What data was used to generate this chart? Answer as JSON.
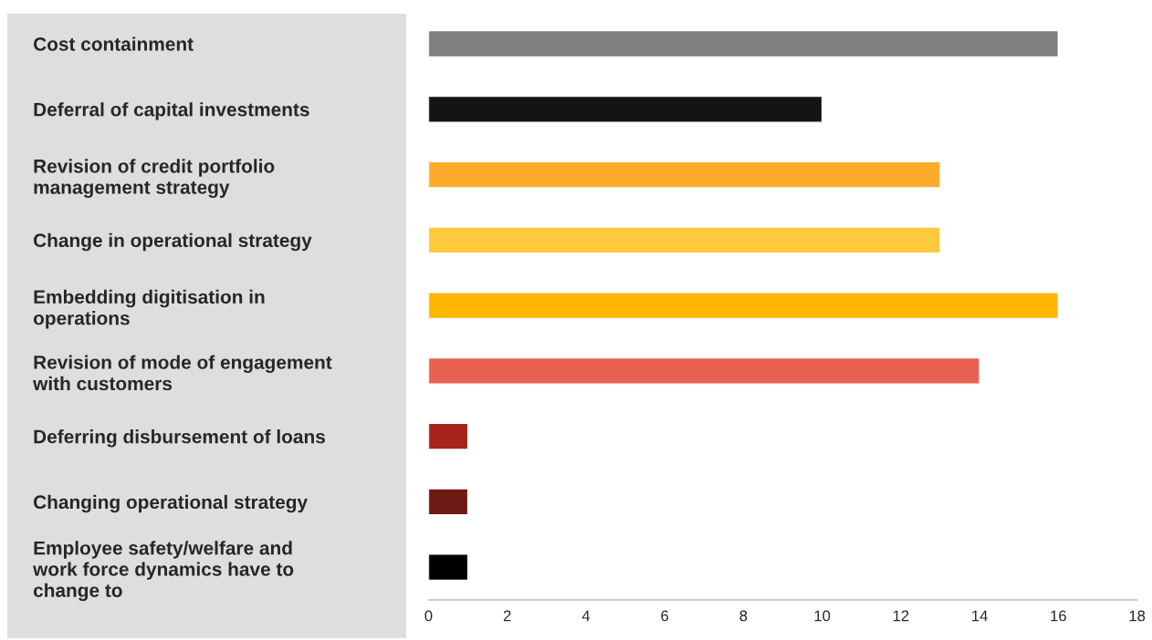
{
  "chart_data": {
    "type": "bar",
    "orientation": "horizontal",
    "categories": [
      "Cost containment",
      "Deferral of capital investments",
      "Revision of credit portfolio\nmanagement strategy",
      "Change in operational strategy",
      "Embedding digitisation in\noperations",
      "Revision of mode of engagement\nwith customers",
      "Deferring disbursement of loans",
      "Changing operational strategy",
      "Employee safety/welfare and\nwork force dynamics have to\nchange to"
    ],
    "values": [
      16,
      10,
      13,
      13,
      16,
      14,
      1,
      1,
      1
    ],
    "colors": [
      "#7f7f7f",
      "#141414",
      "#fdab2b",
      "#ffc83d",
      "#ffb600",
      "#e86153",
      "#a7241a",
      "#6e1a14",
      "#000000"
    ],
    "xlim": [
      0,
      18
    ],
    "xticks": [
      0,
      2,
      4,
      6,
      8,
      10,
      12,
      14,
      16,
      18
    ],
    "grid": false,
    "legend": false
  }
}
